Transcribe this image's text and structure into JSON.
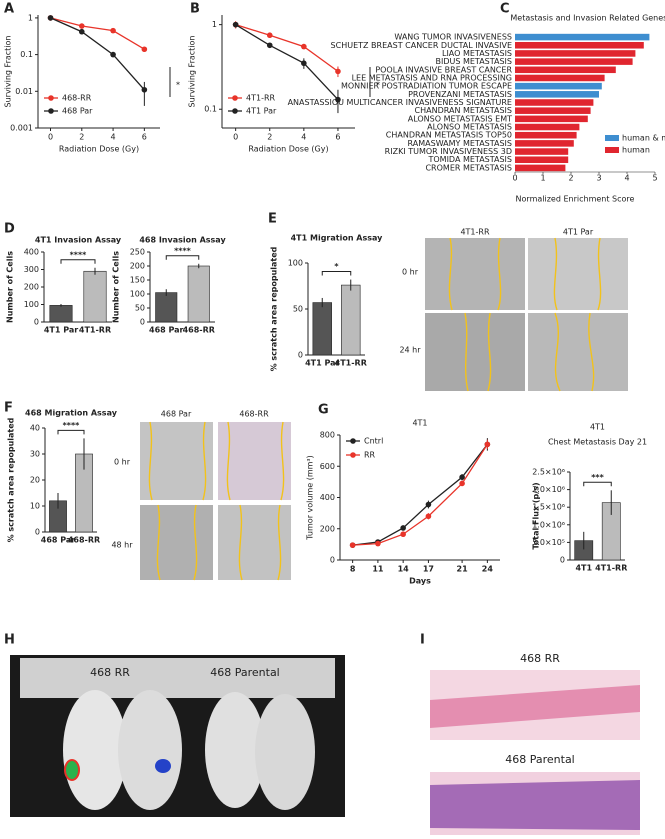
{
  "panel_labels": [
    "A",
    "B",
    "C",
    "D",
    "E",
    "F",
    "G",
    "H",
    "I"
  ],
  "chart_data": [
    {
      "type": "line",
      "log_y": true,
      "x": [
        0,
        2,
        4,
        6
      ],
      "xlim": [
        -0.8,
        7
      ],
      "xticks": [
        0,
        2,
        4,
        6
      ],
      "ylim": [
        0.001,
        1.2
      ],
      "yticks": [
        0.001,
        0.01,
        0.1,
        1
      ],
      "xlabel": "Radiation Dose (Gy)",
      "ylabel": "Surviving Fraction",
      "annotation": "*",
      "legend": "lower left",
      "series": [
        {
          "name": "468-RR",
          "color": "#e8342a",
          "values": [
            1,
            0.6,
            0.45,
            0.14
          ],
          "errors": [
            0,
            0.03,
            0.03,
            0.02
          ]
        },
        {
          "name": "468 Par",
          "color": "#222222",
          "values": [
            1,
            0.42,
            0.1,
            0.011
          ],
          "errors": [
            0,
            0.03,
            0.015,
            0.007
          ]
        }
      ]
    },
    {
      "type": "line",
      "log_y": true,
      "x": [
        0,
        2,
        4,
        6
      ],
      "xlim": [
        -0.8,
        7
      ],
      "xticks": [
        0,
        2,
        4,
        6
      ],
      "ylim": [
        0.06,
        1.3
      ],
      "yticks": [
        0.1,
        1
      ],
      "xlabel": "Radiation Dose (Gy)",
      "ylabel": "Surviving Fraction",
      "annotation": "*",
      "legend": "lower left",
      "series": [
        {
          "name": "4T1-RR",
          "color": "#e8342a",
          "values": [
            1,
            0.75,
            0.55,
            0.28
          ],
          "errors": [
            0.1,
            0.05,
            0.03,
            0.04
          ]
        },
        {
          "name": "4T1 Par",
          "color": "#222222",
          "values": [
            1,
            0.57,
            0.35,
            0.13
          ],
          "errors": [
            0,
            0.03,
            0.05,
            0.04
          ]
        }
      ]
    },
    {
      "type": "hbar",
      "title": "Metastasis and Invasion Related Genesets",
      "xlabel": "Normalized Enrichment Score",
      "xlim": [
        0,
        5
      ],
      "xticks": [
        0,
        1,
        2,
        3,
        4,
        5
      ],
      "legend": "lower right",
      "categories": [
        "WANG TUMOR INVASIVENESS",
        "SCHUETZ BREAST CANCER DUCTAL INVASIVE",
        "LIAO METASTASIS",
        "BIDUS METASTASIS",
        "POOLA INVASIVE BREAST CANCER",
        "LEE METASTASIS AND RNA PROCESSING",
        "MONNIER POSTRADIATION TUMOR ESCAPE",
        "PROVENZANI METASTASIS",
        "ANASTASSIOU MULTICANCER INVASIVENESS SIGNATURE",
        "CHANDRAN METASTASIS",
        "ALONSO METASTASIS EMT",
        "ALONSO METASTASIS",
        "CHANDRAN METASTASIS TOP50",
        "RAMASWAMY METASTASIS",
        "RIZKI TUMOR INVASIVENESS 3D",
        "TOMIDA METASTASIS",
        "CROMER METASTASIS"
      ],
      "series": [
        {
          "name": "human & mouse",
          "color": "#3e8ed0",
          "values": [
            4.8,
            null,
            null,
            null,
            null,
            null,
            3.1,
            3.0,
            null,
            null,
            null,
            null,
            null,
            null,
            null,
            null,
            null
          ]
        },
        {
          "name": "human",
          "color": "#e0262f",
          "values": [
            null,
            4.6,
            4.3,
            4.2,
            3.6,
            3.2,
            null,
            null,
            2.8,
            2.7,
            2.6,
            2.3,
            2.2,
            2.1,
            1.9,
            1.9,
            1.8
          ]
        }
      ]
    },
    {
      "type": "bar",
      "title": "4T1 Invasion Assay",
      "ylabel": "Number of Cells",
      "categories": [
        "4T1 Par",
        "4T1-RR"
      ],
      "values": [
        95,
        290
      ],
      "errors": [
        8,
        20
      ],
      "colors": [
        "#555555",
        "#bbbbbb"
      ],
      "ylim": [
        0,
        400
      ],
      "yticks": [
        0,
        100,
        200,
        300,
        400
      ],
      "annotation": "****"
    },
    {
      "type": "bar",
      "title": "468 Invasion Assay",
      "ylabel": "Number of Cells",
      "categories": [
        "468 Par",
        "468-RR"
      ],
      "values": [
        105,
        200
      ],
      "errors": [
        12,
        8
      ],
      "colors": [
        "#555555",
        "#bbbbbb"
      ],
      "ylim": [
        0,
        250
      ],
      "yticks": [
        0,
        50,
        100,
        150,
        200,
        250
      ],
      "annotation": "****"
    },
    {
      "type": "bar",
      "title": "4T1 Migration Assay",
      "ylabel": "% scratch area repopulated",
      "categories": [
        "4T1 Par",
        "4T1-RR"
      ],
      "values": [
        57,
        76
      ],
      "errors": [
        5,
        6
      ],
      "colors": [
        "#555555",
        "#bbbbbb"
      ],
      "ylim": [
        0,
        100
      ],
      "yticks": [
        0,
        50,
        100
      ],
      "annotation": "*"
    },
    {
      "type": "bar",
      "title": "468 Migration Assay",
      "ylabel": "% scratch area repopulated",
      "categories": [
        "468 Par",
        "468-RR"
      ],
      "values": [
        12,
        30
      ],
      "errors": [
        3,
        6
      ],
      "colors": [
        "#555555",
        "#bbbbbb"
      ],
      "ylim": [
        0,
        40
      ],
      "yticks": [
        0,
        10,
        20,
        30,
        40
      ],
      "annotation": "****"
    },
    {
      "type": "line",
      "title": "4T1",
      "x": [
        8,
        11,
        14,
        17,
        21,
        24
      ],
      "xlim": [
        6.5,
        25.5
      ],
      "xticks": [
        8,
        11,
        14,
        17,
        21,
        24
      ],
      "ylim": [
        0,
        800
      ],
      "yticks": [
        0,
        200,
        400,
        600,
        800
      ],
      "xlabel": "Days",
      "ylabel": "Tumor volume (mm³)",
      "legend": "upper left",
      "series": [
        {
          "name": "Cntrl",
          "color": "#222222",
          "values": [
            95,
            115,
            205,
            355,
            530,
            740
          ],
          "errors": [
            5,
            8,
            10,
            25,
            20,
            40
          ]
        },
        {
          "name": "RR",
          "color": "#e8342a",
          "values": [
            95,
            105,
            165,
            280,
            490,
            740
          ],
          "errors": [
            5,
            5,
            10,
            20,
            15,
            30
          ]
        }
      ]
    },
    {
      "type": "bar",
      "title": "4T1",
      "subtitle": "Chest Metastasis Day 21",
      "ylabel": "Total Flux (p/s)",
      "categories": [
        "4T1",
        "4T1-RR"
      ],
      "values": [
        550000,
        1630000
      ],
      "errors": [
        250000,
        350000
      ],
      "colors": [
        "#555555",
        "#bbbbbb"
      ],
      "ylim": [
        0,
        2500000
      ],
      "yticks": [
        0,
        {
          "value": 500000,
          "label": "5.0×10⁵"
        },
        {
          "value": 1000000,
          "label": "1.0×10⁶"
        },
        {
          "value": 1500000,
          "label": "1.5×10⁶"
        },
        {
          "value": 2000000,
          "label": "2.0×10⁶"
        },
        {
          "value": 2500000,
          "label": "2.5×10⁶"
        }
      ],
      "annotation": "***"
    }
  ],
  "micrographs": {
    "E": {
      "columns": [
        "4T1-RR",
        "4T1 Par"
      ],
      "rows": [
        "0 hr",
        "24 hr"
      ]
    },
    "F": {
      "columns": [
        "468 Par",
        "468-RR"
      ],
      "rows": [
        "0 hr",
        "48 hr"
      ]
    }
  },
  "imaging": {
    "H": [
      "468 RR",
      "468 Parental"
    ],
    "I": [
      "468 RR",
      "468 Parental"
    ]
  }
}
